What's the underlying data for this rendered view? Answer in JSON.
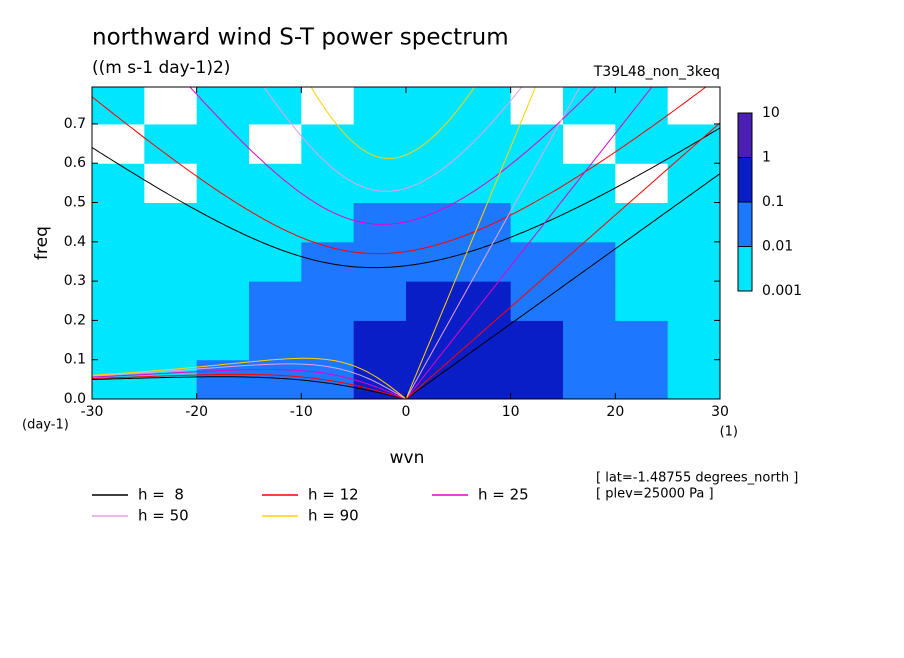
{
  "chart_data": {
    "type": "spectrum",
    "title": "northward wind S-T power spectrum",
    "subtitle": "((m s-1 day-1)2)",
    "run_label": "T39L48_non_3keq",
    "y_label": "freq",
    "y_unit": "(day-1)",
    "x_label": "wvn",
    "x_unit": "(1)",
    "annotations": [
      "[ lat=-1.48755 degrees_north ]",
      "[ plev=25000 Pa ]"
    ],
    "xlim": [
      -30,
      30
    ],
    "ylim": [
      0,
      0.794
    ],
    "xticks": [
      -30,
      -20,
      -10,
      0,
      10,
      20,
      30
    ],
    "yticks": [
      {
        "value": 0,
        "label": "0.0"
      },
      0.1,
      0.2,
      0.3,
      0.4,
      0.5,
      0.6,
      0.7
    ],
    "levels": [
      0.001,
      0.01,
      0.1,
      1,
      10
    ],
    "level_colors": [
      "#00e6ff",
      "#1e78ff",
      "#0a1ec8",
      "#4b1eb4"
    ],
    "field": {
      "x_edges": [
        -30,
        -25,
        -20,
        -15,
        -10,
        -5,
        0,
        5,
        10,
        15,
        20,
        25,
        30
      ],
      "y_edges": [
        0,
        0.1,
        0.2,
        0.3,
        0.4,
        0.5,
        0.6,
        0.7,
        0.8
      ],
      "values": [
        [
          0.005,
          0.005,
          0.02,
          0.02,
          0.05,
          0.2,
          0.2,
          0.5,
          0.2,
          0.05,
          0.02,
          0.005
        ],
        [
          0.005,
          0.005,
          0.005,
          0.02,
          0.02,
          0.2,
          0.2,
          0.2,
          0.2,
          0.05,
          0.02,
          0.005
        ],
        [
          0.005,
          0.002,
          0.005,
          0.02,
          0.02,
          0.05,
          0.2,
          0.2,
          0.05,
          0.02,
          0.005,
          0.002
        ],
        [
          0.002,
          0.005,
          0.005,
          0.005,
          0.02,
          0.05,
          0.05,
          0.02,
          0.02,
          0.02,
          0.005,
          0.002
        ],
        [
          0.002,
          0.005,
          0.005,
          0.005,
          0.005,
          0.02,
          0.02,
          0.02,
          0.005,
          0.005,
          0.005,
          0.002
        ],
        [
          0.005,
          0.0005,
          0.005,
          0.005,
          0.005,
          0.005,
          0.005,
          0.005,
          0.005,
          0.005,
          0.0005,
          0.005
        ],
        [
          0.0005,
          0.005,
          0.005,
          0.0005,
          0.005,
          0.005,
          0.005,
          0.005,
          0.005,
          0.0005,
          0.005,
          0.005
        ],
        [
          0.005,
          0.0005,
          0.005,
          0.005,
          0.0005,
          0.005,
          0.005,
          0.005,
          0.0005,
          0.005,
          0.005,
          0.0005
        ]
      ]
    },
    "series": [
      {
        "name": "h =  8",
        "color": "#000000",
        "h": 8
      },
      {
        "name": "h = 12",
        "color": "#ff0000",
        "h": 12
      },
      {
        "name": "h = 25",
        "color": "#e600c8",
        "h": 25
      },
      {
        "name": "h = 50",
        "color": "#e6a0e6",
        "h": 50
      },
      {
        "name": "h = 90",
        "color": "#ffd200",
        "h": 90
      }
    ]
  }
}
